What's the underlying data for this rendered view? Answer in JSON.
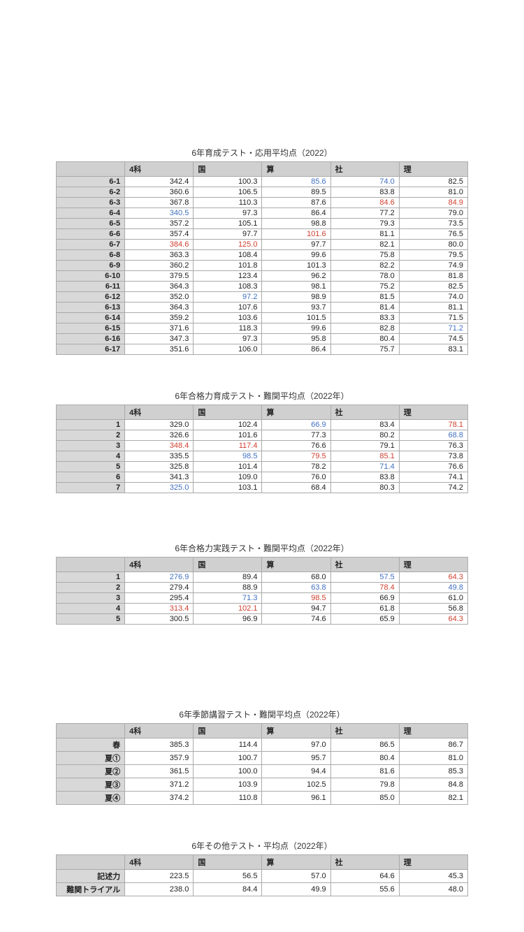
{
  "headers": [
    "",
    "4科",
    "国",
    "算",
    "社",
    "理"
  ],
  "tables": [
    {
      "title": "6年育成テスト・応用平均点（2022）",
      "gap_class": "gap-after",
      "title_class": "first",
      "rows": [
        {
          "label": "6-1",
          "cells": [
            {
              "v": "342.4"
            },
            {
              "v": "100.3"
            },
            {
              "v": "85.6",
              "c": "blue"
            },
            {
              "v": "74.0",
              "c": "blue"
            },
            {
              "v": "82.5"
            }
          ]
        },
        {
          "label": "6-2",
          "cells": [
            {
              "v": "360.6"
            },
            {
              "v": "106.5"
            },
            {
              "v": "89.5"
            },
            {
              "v": "83.8"
            },
            {
              "v": "81.0"
            }
          ]
        },
        {
          "label": "6-3",
          "cells": [
            {
              "v": "367.8"
            },
            {
              "v": "110.3"
            },
            {
              "v": "87.6"
            },
            {
              "v": "84.6",
              "c": "red"
            },
            {
              "v": "84.9",
              "c": "red"
            }
          ]
        },
        {
          "label": "6-4",
          "cells": [
            {
              "v": "340.5",
              "c": "blue"
            },
            {
              "v": "97.3"
            },
            {
              "v": "86.4"
            },
            {
              "v": "77.2"
            },
            {
              "v": "79.0"
            }
          ]
        },
        {
          "label": "6-5",
          "cells": [
            {
              "v": "357.2"
            },
            {
              "v": "105.1"
            },
            {
              "v": "98.8"
            },
            {
              "v": "79.3"
            },
            {
              "v": "73.5"
            }
          ]
        },
        {
          "label": "6-6",
          "cells": [
            {
              "v": "357.4"
            },
            {
              "v": "97.7"
            },
            {
              "v": "101.6",
              "c": "red"
            },
            {
              "v": "81.1"
            },
            {
              "v": "76.5"
            }
          ]
        },
        {
          "label": "6-7",
          "cells": [
            {
              "v": "384.6",
              "c": "red"
            },
            {
              "v": "125.0",
              "c": "red"
            },
            {
              "v": "97.7"
            },
            {
              "v": "82.1"
            },
            {
              "v": "80.0"
            }
          ]
        },
        {
          "label": "6-8",
          "cells": [
            {
              "v": "363.3"
            },
            {
              "v": "108.4"
            },
            {
              "v": "99.6"
            },
            {
              "v": "75.8"
            },
            {
              "v": "79.5"
            }
          ]
        },
        {
          "label": "6-9",
          "cells": [
            {
              "v": "360.2"
            },
            {
              "v": "101.8"
            },
            {
              "v": "101.3"
            },
            {
              "v": "82.2"
            },
            {
              "v": "74.9"
            }
          ]
        },
        {
          "label": "6-10",
          "cells": [
            {
              "v": "379.5"
            },
            {
              "v": "123.4"
            },
            {
              "v": "96.2"
            },
            {
              "v": "78.0"
            },
            {
              "v": "81.8"
            }
          ]
        },
        {
          "label": "6-11",
          "cells": [
            {
              "v": "364.3"
            },
            {
              "v": "108.3"
            },
            {
              "v": "98.1"
            },
            {
              "v": "75.2"
            },
            {
              "v": "82.5"
            }
          ]
        },
        {
          "label": "6-12",
          "cells": [
            {
              "v": "352.0"
            },
            {
              "v": "97.2",
              "c": "blue"
            },
            {
              "v": "98.9"
            },
            {
              "v": "81.5"
            },
            {
              "v": "74.0"
            }
          ]
        },
        {
          "label": "6-13",
          "cells": [
            {
              "v": "364.3"
            },
            {
              "v": "107.6"
            },
            {
              "v": "93.7"
            },
            {
              "v": "81.4"
            },
            {
              "v": "81.1"
            }
          ]
        },
        {
          "label": "6-14",
          "cells": [
            {
              "v": "359.2"
            },
            {
              "v": "103.6"
            },
            {
              "v": "101.5"
            },
            {
              "v": "83.3"
            },
            {
              "v": "71.5"
            }
          ]
        },
        {
          "label": "6-15",
          "cells": [
            {
              "v": "371.6"
            },
            {
              "v": "118.3"
            },
            {
              "v": "99.6"
            },
            {
              "v": "82.8"
            },
            {
              "v": "71.2",
              "c": "blue"
            }
          ]
        },
        {
          "label": "6-16",
          "cells": [
            {
              "v": "347.3"
            },
            {
              "v": "97.3"
            },
            {
              "v": "95.8"
            },
            {
              "v": "80.4"
            },
            {
              "v": "74.5"
            }
          ]
        },
        {
          "label": "6-17",
          "cells": [
            {
              "v": "351.6"
            },
            {
              "v": "106.0"
            },
            {
              "v": "86.4"
            },
            {
              "v": "75.7"
            },
            {
              "v": "83.1"
            }
          ]
        }
      ]
    },
    {
      "title": "6年合格力育成テスト・難関平均点（2022年）",
      "gap_class": "gap-after-big",
      "rows": [
        {
          "label": "1",
          "cells": [
            {
              "v": "329.0"
            },
            {
              "v": "102.4"
            },
            {
              "v": "66.9",
              "c": "blue"
            },
            {
              "v": "83.4"
            },
            {
              "v": "78.1",
              "c": "red"
            }
          ]
        },
        {
          "label": "2",
          "cells": [
            {
              "v": "326.6"
            },
            {
              "v": "101.6"
            },
            {
              "v": "77.3"
            },
            {
              "v": "80.2"
            },
            {
              "v": "68.8",
              "c": "blue"
            }
          ]
        },
        {
          "label": "3",
          "cells": [
            {
              "v": "348.4",
              "c": "red"
            },
            {
              "v": "117.4",
              "c": "red"
            },
            {
              "v": "76.6"
            },
            {
              "v": "79.1"
            },
            {
              "v": "76.3"
            }
          ]
        },
        {
          "label": "4",
          "cells": [
            {
              "v": "335.5"
            },
            {
              "v": "98.5",
              "c": "blue"
            },
            {
              "v": "79.5",
              "c": "red"
            },
            {
              "v": "85.1",
              "c": "red"
            },
            {
              "v": "73.8"
            }
          ]
        },
        {
          "label": "5",
          "cells": [
            {
              "v": "325.8"
            },
            {
              "v": "101.4"
            },
            {
              "v": "78.2"
            },
            {
              "v": "71.4",
              "c": "blue"
            },
            {
              "v": "76.6"
            }
          ]
        },
        {
          "label": "6",
          "cells": [
            {
              "v": "341.3"
            },
            {
              "v": "109.0"
            },
            {
              "v": "76.0"
            },
            {
              "v": "83.8"
            },
            {
              "v": "74.1"
            }
          ]
        },
        {
          "label": "7",
          "cells": [
            {
              "v": "325.0",
              "c": "blue"
            },
            {
              "v": "103.1"
            },
            {
              "v": "68.4"
            },
            {
              "v": "80.3"
            },
            {
              "v": "74.2"
            }
          ]
        }
      ]
    },
    {
      "title": "6年合格力実践テスト・難関平均点（2022年）",
      "gap_class": "gap-after-huge",
      "rows": [
        {
          "label": "1",
          "cells": [
            {
              "v": "276.9",
              "c": "blue"
            },
            {
              "v": "89.4"
            },
            {
              "v": "68.0"
            },
            {
              "v": "57.5",
              "c": "blue"
            },
            {
              "v": "64.3",
              "c": "red"
            }
          ]
        },
        {
          "label": "2",
          "cells": [
            {
              "v": "279.4"
            },
            {
              "v": "88.9"
            },
            {
              "v": "63.8",
              "c": "blue"
            },
            {
              "v": "78.4",
              "c": "red"
            },
            {
              "v": "49.8",
              "c": "blue"
            }
          ]
        },
        {
          "label": "3",
          "cells": [
            {
              "v": "295.4"
            },
            {
              "v": "71.3",
              "c": "blue"
            },
            {
              "v": "98.5",
              "c": "red"
            },
            {
              "v": "66.9"
            },
            {
              "v": "61.0"
            }
          ]
        },
        {
          "label": "4",
          "cells": [
            {
              "v": "313.4",
              "c": "red"
            },
            {
              "v": "102.1",
              "c": "red"
            },
            {
              "v": "94.7"
            },
            {
              "v": "61.8"
            },
            {
              "v": "56.8"
            }
          ]
        },
        {
          "label": "5",
          "cells": [
            {
              "v": "300.5"
            },
            {
              "v": "96.9"
            },
            {
              "v": "74.6"
            },
            {
              "v": "65.9"
            },
            {
              "v": "64.3",
              "c": "red"
            }
          ]
        }
      ]
    },
    {
      "title": "6年季節講習テスト・難関平均点（2022年）",
      "gap_class": "gap-after",
      "rows": [
        {
          "label": "春",
          "cells": [
            {
              "v": "385.3"
            },
            {
              "v": "114.4"
            },
            {
              "v": "97.0"
            },
            {
              "v": "86.5"
            },
            {
              "v": "86.7"
            }
          ]
        },
        {
          "label": "夏①",
          "cells": [
            {
              "v": "357.9"
            },
            {
              "v": "100.7"
            },
            {
              "v": "95.7"
            },
            {
              "v": "80.4"
            },
            {
              "v": "81.0"
            }
          ]
        },
        {
          "label": "夏②",
          "cells": [
            {
              "v": "361.5"
            },
            {
              "v": "100.0"
            },
            {
              "v": "94.4"
            },
            {
              "v": "81.6"
            },
            {
              "v": "85.3"
            }
          ]
        },
        {
          "label": "夏③",
          "cells": [
            {
              "v": "371.2"
            },
            {
              "v": "103.9"
            },
            {
              "v": "102.5"
            },
            {
              "v": "79.8"
            },
            {
              "v": "84.8"
            }
          ]
        },
        {
          "label": "夏④",
          "cells": [
            {
              "v": "374.2"
            },
            {
              "v": "110.8"
            },
            {
              "v": "96.1"
            },
            {
              "v": "85.0"
            },
            {
              "v": "82.1"
            }
          ]
        }
      ]
    },
    {
      "title": "6年その他テスト・平均点（2022年）",
      "gap_class": "",
      "rows": [
        {
          "label": "記述力",
          "cells": [
            {
              "v": "223.5"
            },
            {
              "v": "56.5"
            },
            {
              "v": "57.0"
            },
            {
              "v": "64.6"
            },
            {
              "v": "45.3"
            }
          ]
        },
        {
          "label": "難関トライアル",
          "cells": [
            {
              "v": "238.0"
            },
            {
              "v": "84.4"
            },
            {
              "v": "49.9"
            },
            {
              "v": "55.6"
            },
            {
              "v": "48.0"
            }
          ]
        }
      ]
    }
  ]
}
